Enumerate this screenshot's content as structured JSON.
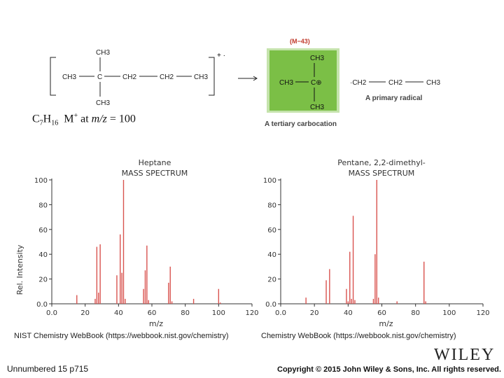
{
  "scheme": {
    "molecule": {
      "ch3_top": "CH3",
      "ch3_left": "CH3",
      "c_center": "C",
      "ch2_a": "CH2",
      "ch2_b": "CH2",
      "ch3_right": "CH3",
      "ch3_bottom": "CH3",
      "charge": "+ ·"
    },
    "fragment_label": "(M−43)",
    "cation": {
      "ch3_top": "CH3",
      "ch3_left": "CH3",
      "c_plus": "C⊕",
      "ch3_bottom": "CH3",
      "caption": "A tertiary carbocation"
    },
    "radical": {
      "dot_ch2": "·CH2",
      "ch2": "CH2",
      "ch3": "CH3",
      "caption": "A primary radical"
    },
    "formula": {
      "c": "C",
      "c_sub": "7",
      "h": "H",
      "h_sub": "16",
      "ion": "M",
      "ion_sup": "+",
      "at": "at",
      "mz": "m/z",
      "equals": "= 100"
    }
  },
  "chart_data": [
    {
      "type": "bar",
      "title": "Heptane",
      "subtitle": "MASS SPECTRUM",
      "xlabel": "m/z",
      "ylabel": "Rel. Intensity",
      "xlim": [
        0,
        120
      ],
      "ylim": [
        0,
        100
      ],
      "xticks": [
        "0.0",
        "20",
        "40",
        "60",
        "80",
        "100",
        "120"
      ],
      "yticks": [
        "0.0",
        "20",
        "40",
        "60",
        "80",
        "100"
      ],
      "peaks": [
        {
          "mz": 15,
          "i": 7
        },
        {
          "mz": 26,
          "i": 4
        },
        {
          "mz": 27,
          "i": 46
        },
        {
          "mz": 28,
          "i": 9
        },
        {
          "mz": 29,
          "i": 48
        },
        {
          "mz": 39,
          "i": 23
        },
        {
          "mz": 41,
          "i": 56
        },
        {
          "mz": 42,
          "i": 25
        },
        {
          "mz": 43,
          "i": 100
        },
        {
          "mz": 44,
          "i": 4
        },
        {
          "mz": 55,
          "i": 12
        },
        {
          "mz": 56,
          "i": 27
        },
        {
          "mz": 57,
          "i": 47
        },
        {
          "mz": 58,
          "i": 3
        },
        {
          "mz": 70,
          "i": 17
        },
        {
          "mz": 71,
          "i": 30
        },
        {
          "mz": 72,
          "i": 2
        },
        {
          "mz": 85,
          "i": 4
        },
        {
          "mz": 100,
          "i": 12
        },
        {
          "mz": 101,
          "i": 1
        }
      ],
      "source": "NIST Chemistry WebBook (https://webbook.nist.gov/chemistry)"
    },
    {
      "type": "bar",
      "title": "Pentane, 2,2-dimethyl-",
      "subtitle": "MASS SPECTRUM",
      "xlabel": "m/z",
      "ylabel": "",
      "xlim": [
        0,
        120
      ],
      "ylim": [
        0,
        100
      ],
      "xticks": [
        "0.0",
        "20",
        "40",
        "60",
        "80",
        "100",
        "120"
      ],
      "yticks": [
        "0.0",
        "20",
        "40",
        "60",
        "80",
        "100"
      ],
      "peaks": [
        {
          "mz": 15,
          "i": 5
        },
        {
          "mz": 27,
          "i": 19
        },
        {
          "mz": 29,
          "i": 28
        },
        {
          "mz": 39,
          "i": 12
        },
        {
          "mz": 40,
          "i": 2
        },
        {
          "mz": 41,
          "i": 42
        },
        {
          "mz": 42,
          "i": 4
        },
        {
          "mz": 43,
          "i": 71
        },
        {
          "mz": 44,
          "i": 3
        },
        {
          "mz": 55,
          "i": 4
        },
        {
          "mz": 56,
          "i": 40
        },
        {
          "mz": 57,
          "i": 100
        },
        {
          "mz": 58,
          "i": 5
        },
        {
          "mz": 69,
          "i": 2
        },
        {
          "mz": 85,
          "i": 34
        },
        {
          "mz": 86,
          "i": 2
        }
      ],
      "source": "Chemistry WebBook (https://webbook.nist.gov/chemistry)"
    }
  ],
  "footer": {
    "left": "Unnumbered 15 p715",
    "right": "Copyright © 2015 John Wiley & Sons, Inc. All rights reserved.",
    "logo": "WILEY"
  },
  "colors": {
    "peak": "#d9534f",
    "box_fill": "#7bbf46",
    "box_border": "#c5e3ac",
    "fragment_label": "#c0392b"
  }
}
